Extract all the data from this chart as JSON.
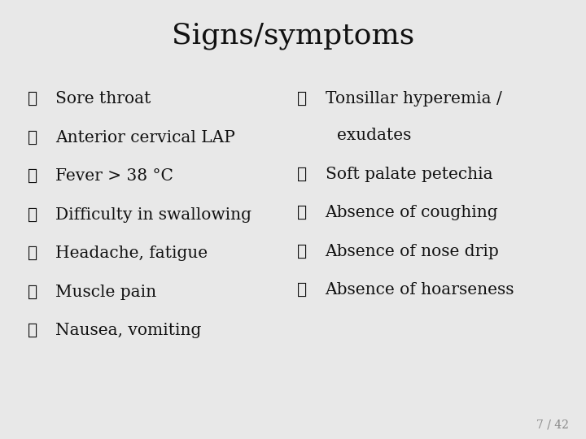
{
  "title": "Signs/symptoms",
  "title_fontsize": 26,
  "background_color": "#e8e8e8",
  "text_color": "#111111",
  "slide_number": "7 / 42",
  "left_items": [
    "Sore throat",
    "Anterior cervical LAP",
    "Fever > 38 °C",
    "Difficulty in swallowing",
    "Headache, fatigue",
    "Muscle pain",
    "Nausea, vomiting"
  ],
  "right_items": [
    {
      "text": "Tonsillar hyperemia /",
      "bullet": true,
      "indent": false
    },
    {
      "text": "exudates",
      "bullet": false,
      "indent": true
    },
    {
      "text": "Soft palate petechia",
      "bullet": true,
      "indent": false
    },
    {
      "text": "Absence of coughing",
      "bullet": true,
      "indent": false
    },
    {
      "text": "Absence of nose drip",
      "bullet": true,
      "indent": false
    },
    {
      "text": "Absence of hoarseness",
      "bullet": true,
      "indent": false
    }
  ],
  "bullet_char": "❖",
  "item_fontsize": 14.5,
  "item_family": "serif",
  "slide_num_color": "#888888",
  "slide_num_fontsize": 10
}
